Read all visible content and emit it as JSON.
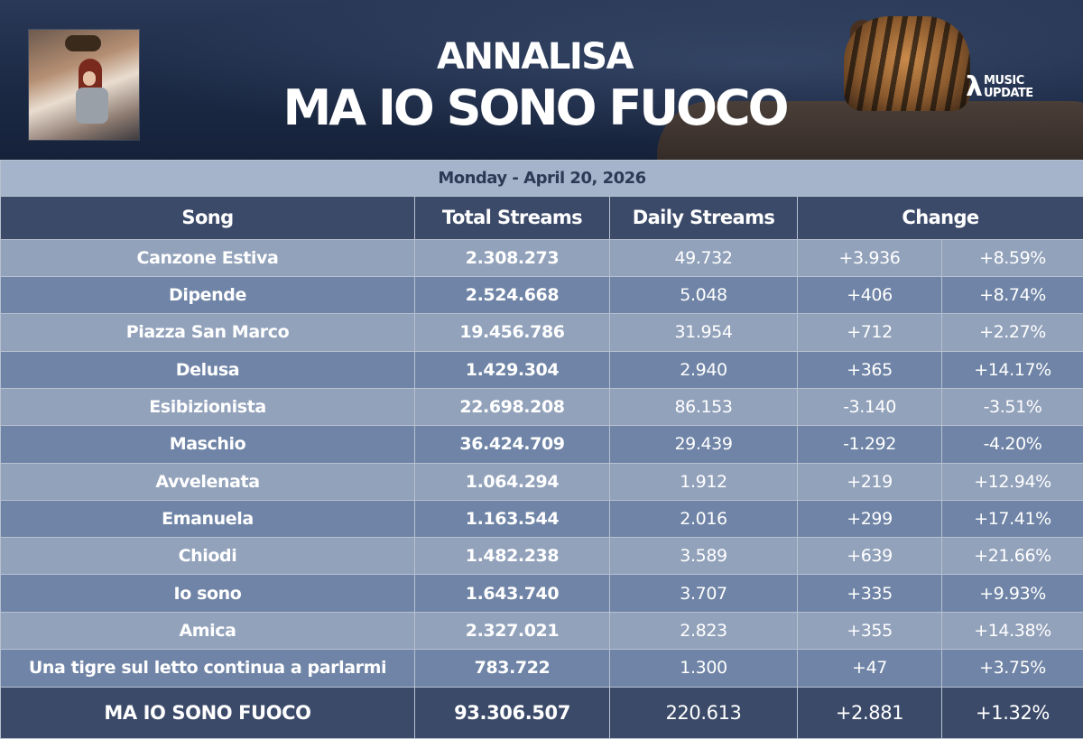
{
  "header": {
    "artist": "ANNALISA",
    "album": "MA IO SONO FUOCO",
    "logo_mark": "λ",
    "logo_line1": "MUSIC",
    "logo_line2": "UPDATE"
  },
  "table": {
    "date": "Monday - April 20, 2026",
    "columns": [
      "Song",
      "Total Streams",
      "Daily Streams",
      "Change"
    ],
    "rows": [
      {
        "song": "Canzone Estiva",
        "total": "2.308.273",
        "daily": "49.732",
        "change": "+3.936",
        "pct": "+8.59%"
      },
      {
        "song": "Dipende",
        "total": "2.524.668",
        "daily": "5.048",
        "change": "+406",
        "pct": "+8.74%"
      },
      {
        "song": "Piazza San Marco",
        "total": "19.456.786",
        "daily": "31.954",
        "change": "+712",
        "pct": "+2.27%"
      },
      {
        "song": "Delusa",
        "total": "1.429.304",
        "daily": "2.940",
        "change": "+365",
        "pct": "+14.17%"
      },
      {
        "song": "Esibizionista",
        "total": "22.698.208",
        "daily": "86.153",
        "change": "-3.140",
        "pct": "-3.51%"
      },
      {
        "song": "Maschio",
        "total": "36.424.709",
        "daily": "29.439",
        "change": "-1.292",
        "pct": "-4.20%"
      },
      {
        "song": "Avvelenata",
        "total": "1.064.294",
        "daily": "1.912",
        "change": "+219",
        "pct": "+12.94%"
      },
      {
        "song": "Emanuela",
        "total": "1.163.544",
        "daily": "2.016",
        "change": "+299",
        "pct": "+17.41%"
      },
      {
        "song": "Chiodi",
        "total": "1.482.238",
        "daily": "3.589",
        "change": "+639",
        "pct": "+21.66%"
      },
      {
        "song": "Io sono",
        "total": "1.643.740",
        "daily": "3.707",
        "change": "+335",
        "pct": "+9.93%"
      },
      {
        "song": "Amica",
        "total": "2.327.021",
        "daily": "2.823",
        "change": "+355",
        "pct": "+14.38%"
      },
      {
        "song": "Una tigre sul letto continua a parlarmi",
        "total": "783.722",
        "daily": "1.300",
        "change": "+47",
        "pct": "+3.75%"
      }
    ],
    "summary": {
      "song": "MA IO SONO FUOCO",
      "total": "93.306.507",
      "daily": "220.613",
      "change": "+2.881",
      "pct": "+1.32%"
    }
  }
}
